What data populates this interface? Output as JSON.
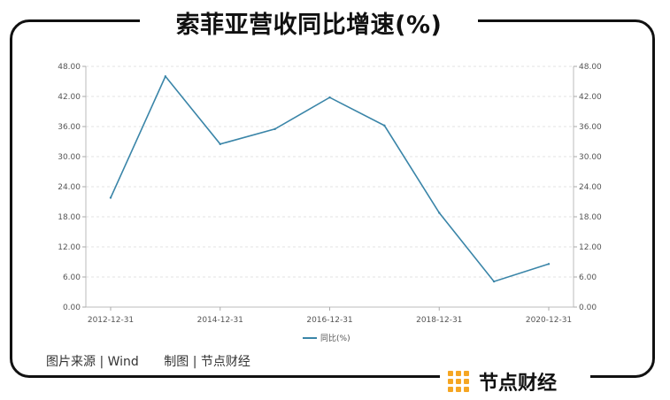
{
  "header": {
    "title": "索菲亚营收同比增速(%)"
  },
  "footer": {
    "source": "图片来源 | Wind",
    "made_by": "制图 | 节点财经"
  },
  "brand": {
    "name": "节点财经",
    "accent": "#f5a623"
  },
  "chart_data": {
    "type": "line",
    "x": [
      "2012-12-31",
      "2013-12-31",
      "2014-12-31",
      "2015-12-31",
      "2016-12-31",
      "2017-12-31",
      "2018-12-31",
      "2019-12-31",
      "2020-12-31"
    ],
    "x_tick_labels": [
      "2012-12-31",
      "2014-12-31",
      "2016-12-31",
      "2018-12-31",
      "2020-12-31"
    ],
    "series": [
      {
        "name": "同比(%)",
        "color": "#3a85a8",
        "values": [
          21.8,
          46.0,
          32.5,
          35.5,
          41.8,
          36.2,
          18.8,
          5.1,
          8.6
        ]
      }
    ],
    "ylim": [
      0,
      48
    ],
    "y_ticks": [
      "0.00",
      "6.00",
      "12.00",
      "18.00",
      "24.00",
      "30.00",
      "36.00",
      "42.00",
      "48.00"
    ],
    "dual_y_axis": true,
    "grid": true,
    "legend": "bottom-center"
  }
}
